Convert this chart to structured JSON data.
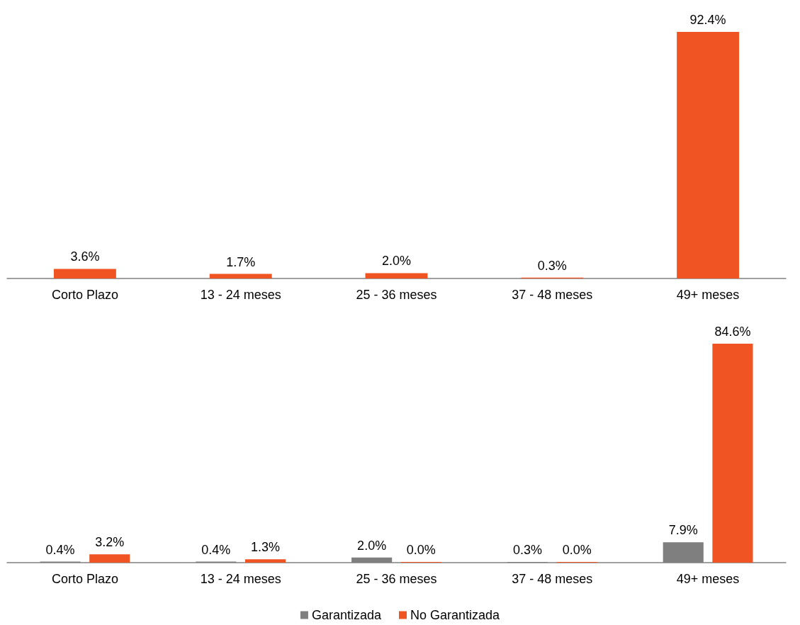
{
  "chart_data": [
    {
      "type": "bar",
      "categories": [
        "Corto Plazo",
        "13 - 24 meses",
        "25 - 36 meses",
        "37 - 48 meses",
        "49+ meses"
      ],
      "series": [
        {
          "color": "#f05423",
          "values": [
            3.6,
            1.7,
            2.0,
            0.3,
            92.4
          ],
          "value_labels": [
            "3.6%",
            "1.7%",
            "2.0%",
            "0.3%",
            "92.4%"
          ]
        }
      ],
      "legend": false,
      "tick_labels": "x"
    },
    {
      "type": "bar",
      "categories": [
        "Corto Plazo",
        "13 - 24 meses",
        "25 - 36 meses",
        "37 - 48 meses",
        "49+ meses"
      ],
      "series": [
        {
          "name": "Garantizada",
          "color": "#7f7f7f",
          "values": [
            0.4,
            0.4,
            2.0,
            0.3,
            7.9
          ],
          "value_labels": [
            "0.4%",
            "0.4%",
            "2.0%",
            "0.3%",
            "7.9%"
          ]
        },
        {
          "name": "No Garantizada",
          "color": "#f05423",
          "values": [
            3.2,
            1.3,
            0.0,
            0.0,
            84.6
          ],
          "value_labels": [
            "3.2%",
            "1.3%",
            "0.0%",
            "0.0%",
            "84.6%"
          ]
        }
      ],
      "legend": "bottom",
      "tick_labels": "x"
    }
  ]
}
